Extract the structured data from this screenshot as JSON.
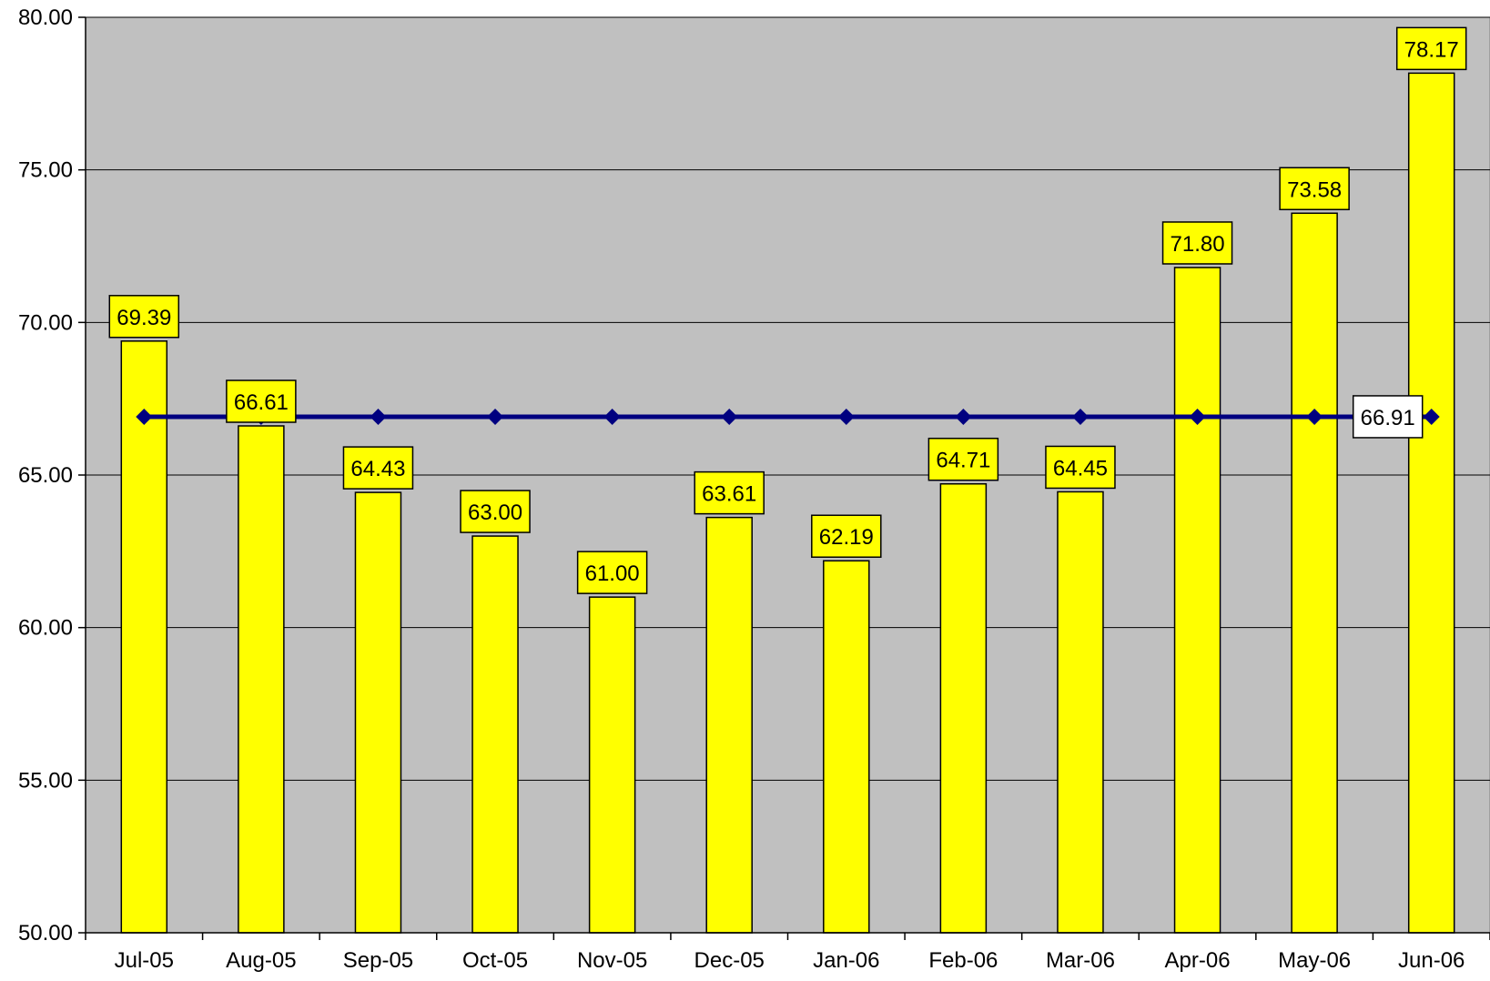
{
  "chart_data": {
    "type": "bar",
    "title": "",
    "xlabel": "",
    "ylabel": "",
    "categories": [
      "Jul-05",
      "Aug-05",
      "Sep-05",
      "Oct-05",
      "Nov-05",
      "Dec-05",
      "Jan-06",
      "Feb-06",
      "Mar-06",
      "Apr-06",
      "May-06",
      "Jun-06"
    ],
    "series": [
      {
        "type": "bar",
        "values": [
          69.39,
          66.61,
          64.43,
          63.0,
          61.0,
          63.61,
          62.19,
          64.71,
          64.45,
          71.8,
          73.58,
          78.17
        ],
        "labels": [
          "69.39",
          "66.61",
          "64.43",
          "63.00",
          "61.00",
          "63.61",
          "62.19",
          "64.71",
          "64.45",
          "71.80",
          "73.58",
          "78.17"
        ],
        "color": "#FFFF00"
      },
      {
        "type": "line",
        "values": [
          66.91,
          66.91,
          66.91,
          66.91,
          66.91,
          66.91,
          66.91,
          66.91,
          66.91,
          66.91,
          66.91,
          66.91
        ],
        "end_label": "66.91",
        "color": "#000080"
      }
    ],
    "ylim": [
      50,
      80
    ],
    "yticks": [
      "50.00",
      "55.00",
      "60.00",
      "65.00",
      "70.00",
      "75.00",
      "80.00"
    ],
    "grid": true,
    "legend": "none",
    "plot_background": "#C0C0C0",
    "label_background": "#FFFF00",
    "line_label_background": "#FFFFFF"
  }
}
